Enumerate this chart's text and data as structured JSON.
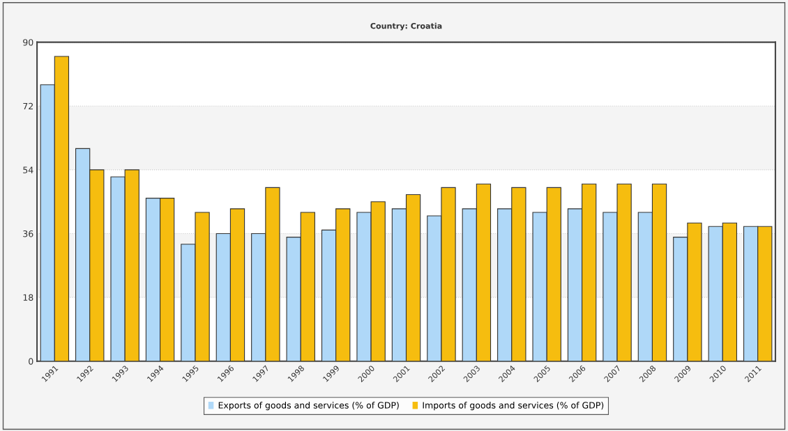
{
  "chart_data": {
    "type": "bar",
    "title": "Country: Croatia",
    "categories": [
      "1991",
      "1992",
      "1993",
      "1994",
      "1995",
      "1996",
      "1997",
      "1998",
      "1999",
      "2000",
      "2001",
      "2002",
      "2003",
      "2004",
      "2005",
      "2006",
      "2007",
      "2008",
      "2009",
      "2010",
      "2011"
    ],
    "series": [
      {
        "name": "Exports of goods and services (% of GDP)",
        "color": "#afd8f8",
        "values": [
          78,
          60,
          52,
          46,
          33,
          36,
          36,
          35,
          37,
          42,
          43,
          41,
          43,
          43,
          42,
          43,
          42,
          42,
          35,
          38,
          38
        ]
      },
      {
        "name": "Imports of goods and services (% of GDP)",
        "color": "#f6bd0f",
        "values": [
          86,
          54,
          54,
          46,
          42,
          43,
          49,
          42,
          43,
          45,
          47,
          49,
          50,
          49,
          49,
          50,
          50,
          50,
          39,
          39,
          38
        ]
      }
    ],
    "ylim": [
      0,
      90
    ],
    "yticks": [
      0,
      18,
      36,
      54,
      72,
      90
    ],
    "grid": "y",
    "legend": "bottom"
  }
}
